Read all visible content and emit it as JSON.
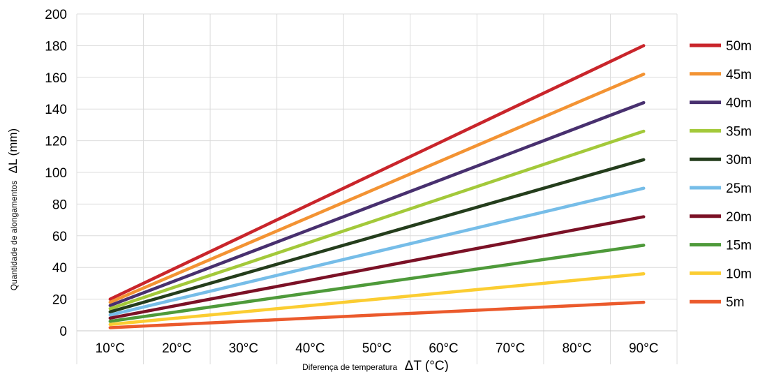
{
  "chart_data": {
    "type": "line",
    "categories": [
      "10°C",
      "20°C",
      "30°C",
      "40°C",
      "50°C",
      "60°C",
      "70°C",
      "80°C",
      "90°C"
    ],
    "ylim": [
      0,
      200
    ],
    "yticks": [
      "0",
      "20",
      "40",
      "60",
      "80",
      "100",
      "120",
      "140",
      "160",
      "180",
      "200"
    ],
    "grid": true,
    "legend_position": "right",
    "ylabel_small": "Quantidade de alongamentos",
    "ylabel_large": "ΔL (mm)",
    "xlabel_small": "Diferença de temperatura",
    "xlabel_large": "ΔT (°C)",
    "series": [
      {
        "name": "50m",
        "color": "#c9252b",
        "values": [
          20,
          40,
          60,
          80,
          100,
          120,
          140,
          160,
          180
        ]
      },
      {
        "name": "45m",
        "color": "#f39333",
        "values": [
          18,
          36,
          54,
          72,
          90,
          108,
          126,
          144,
          162
        ]
      },
      {
        "name": "40m",
        "color": "#48306f",
        "values": [
          16,
          32,
          48,
          64,
          80,
          96,
          112,
          128,
          144
        ]
      },
      {
        "name": "35m",
        "color": "#a3c93a",
        "values": [
          14,
          28,
          42,
          56,
          70,
          84,
          98,
          112,
          126
        ]
      },
      {
        "name": "30m",
        "color": "#243d1c",
        "values": [
          12,
          24,
          36,
          48,
          60,
          72,
          84,
          96,
          108
        ]
      },
      {
        "name": "25m",
        "color": "#76bde8",
        "values": [
          10,
          20,
          30,
          40,
          50,
          60,
          70,
          80,
          90
        ]
      },
      {
        "name": "20m",
        "color": "#7b1126",
        "values": [
          8,
          16,
          24,
          32,
          40,
          48,
          56,
          64,
          72
        ]
      },
      {
        "name": "15m",
        "color": "#4e9a3a",
        "values": [
          6,
          12,
          18,
          24,
          30,
          36,
          42,
          48,
          54
        ]
      },
      {
        "name": "10m",
        "color": "#fbcd32",
        "values": [
          4,
          8,
          12,
          16,
          20,
          24,
          28,
          32,
          36
        ]
      },
      {
        "name": "5m",
        "color": "#eb5a2c",
        "values": [
          2,
          4,
          6,
          8,
          10,
          12,
          14,
          16,
          18
        ]
      }
    ]
  }
}
